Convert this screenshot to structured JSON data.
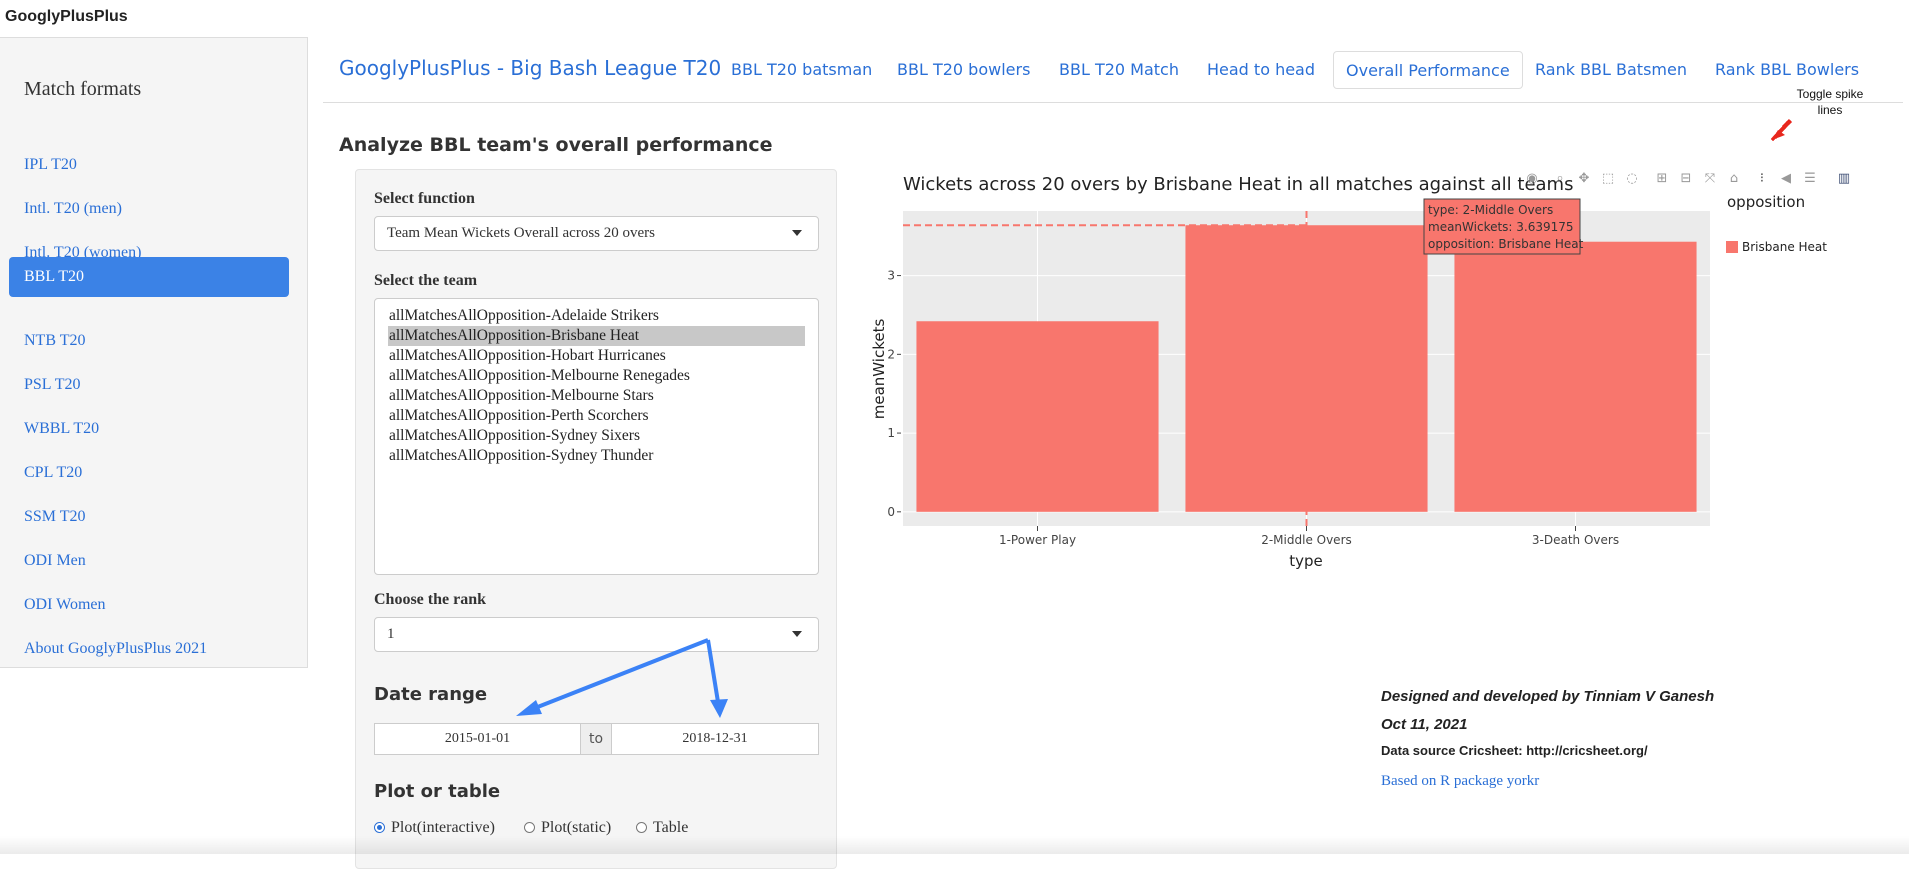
{
  "app": {
    "title": "GooglyPlusPlus"
  },
  "sidebar": {
    "heading": "Match formats",
    "items": [
      {
        "label": "IPL T20"
      },
      {
        "label": "Intl. T20 (men)"
      },
      {
        "label": "Intl. T20 (women)"
      },
      {
        "label": "BBL T20",
        "active": true
      },
      {
        "label": "NTB T20"
      },
      {
        "label": "PSL T20"
      },
      {
        "label": "WBBL T20"
      },
      {
        "label": "CPL T20"
      },
      {
        "label": "SSM T20"
      },
      {
        "label": "ODI Men"
      },
      {
        "label": "ODI Women"
      },
      {
        "label": "About GooglyPlusPlus 2021"
      }
    ]
  },
  "navbar": {
    "brand": "GooglyPlusPlus - Big Bash League T20",
    "tabs": [
      {
        "label": "BBL T20 batsman"
      },
      {
        "label": "BBL T20 bowlers"
      },
      {
        "label": "BBL T20 Match"
      },
      {
        "label": "Head to head"
      },
      {
        "label": "Overall Performance",
        "active": true
      },
      {
        "label": "Rank BBL Batsmen"
      },
      {
        "label": "Rank BBL Bowlers"
      }
    ]
  },
  "main": {
    "section_title": "Analyze BBL team's overall performance",
    "select_function": {
      "label": "Select function",
      "value": "Team Mean Wickets Overall across 20 overs"
    },
    "select_team": {
      "label": "Select the team",
      "options": [
        "allMatchesAllOpposition-Adelaide Strikers",
        "allMatchesAllOpposition-Brisbane Heat",
        "allMatchesAllOpposition-Hobart Hurricanes",
        "allMatchesAllOpposition-Melbourne Renegades",
        "allMatchesAllOpposition-Melbourne Stars",
        "allMatchesAllOpposition-Perth Scorchers",
        "allMatchesAllOpposition-Sydney Sixers",
        "allMatchesAllOpposition-Sydney Thunder"
      ],
      "selected_index": 1
    },
    "rank": {
      "label": "Choose the rank",
      "value": "1"
    },
    "date_range": {
      "label": "Date range",
      "start": "2015-01-01",
      "separator": "to",
      "end": "2018-12-31"
    },
    "plot_or_table": {
      "label": "Plot or table",
      "options": [
        "Plot(interactive)",
        "Plot(static)",
        "Table"
      ],
      "selected": "Plot(interactive)"
    }
  },
  "chart": {
    "title": "Wickets across 20 overs by  Brisbane Heat in all matches against all teams",
    "legend_title": "opposition",
    "annotation": "Toggle spike lines",
    "hover": {
      "line1": "type: 2-Middle Overs",
      "line2": "meanWickets: 3.639175",
      "line3": "opposition: Brisbane Heat"
    }
  },
  "chart_data": {
    "type": "bar",
    "title": "Wickets across 20 overs by  Brisbane Heat in all matches against all teams",
    "xlabel": "type",
    "ylabel": "meanWickets",
    "categories": [
      "1-Power Play",
      "2-Middle Overs",
      "3-Death Overs"
    ],
    "series": [
      {
        "name": "Brisbane Heat",
        "values": [
          2.42,
          3.639175,
          3.43
        ]
      }
    ],
    "yticks": [
      0,
      1,
      2,
      3
    ],
    "ylim": [
      -0.18,
      3.82
    ],
    "grid": true,
    "legend_placement": "top-right",
    "colors": {
      "bar": "#f8766d",
      "panel": "#ebebeb",
      "spike": "#f8766d"
    }
  },
  "footer": {
    "credit": "Designed and developed by Tinniam V Ganesh",
    "date": "Oct 11, 2021",
    "source": "Data source Cricsheet: http://cricsheet.org/",
    "link": "Based on R package yorkr"
  },
  "colors": {
    "accent": "#2a6fd6",
    "active_bg": "#3b82e6",
    "arrow_blue": "#3b82f6",
    "arrow_red": "#e8281e"
  }
}
